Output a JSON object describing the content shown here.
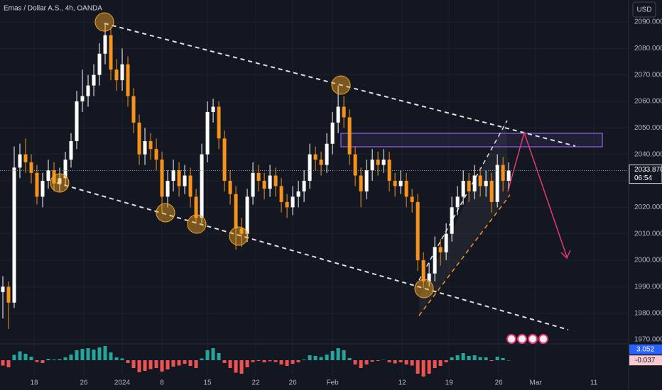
{
  "chart_data": {
    "type": "candlestick",
    "title": "Emas / Dollar A.S., 4h, OANDA",
    "currency": "USD",
    "up_color": "#ffffff",
    "down_color": "#f7931a",
    "ohlc": {
      "open": [
        1988,
        1990,
        1984,
        2035,
        2040,
        2037,
        2033,
        2024,
        2030,
        2034,
        2029,
        2031,
        2038,
        2045,
        2060,
        2062,
        2066,
        2070,
        2078,
        2085,
        2072,
        2068,
        2074,
        2062,
        2052,
        2040,
        2045,
        2042,
        2038,
        2024,
        2030,
        2034,
        2028,
        2032,
        2024,
        2016,
        2040,
        2056,
        2058,
        2046,
        2030,
        2025,
        2012,
        2010,
        2024,
        2033,
        2030,
        2027,
        2032,
        2028,
        2022,
        2020,
        2024,
        2026,
        2030,
        2040,
        2038,
        2036,
        2044,
        2052,
        2058,
        2054,
        2040,
        2032,
        2026,
        2034,
        2038,
        2036,
        2038,
        2030,
        2028,
        2030,
        2024,
        2022,
        2000,
        1992,
        1995,
        2005,
        2003,
        2010,
        2020,
        2024,
        2030,
        2026,
        2032,
        2028,
        2030,
        2022,
        2036,
        2030
      ],
      "high": [
        1994,
        1992,
        2043,
        2044,
        2046,
        2040,
        2036,
        2033,
        2038,
        2037,
        2035,
        2041,
        2048,
        2064,
        2072,
        2070,
        2074,
        2082,
        2089.5,
        2088,
        2076,
        2080,
        2077,
        2065,
        2055,
        2050,
        2048,
        2046,
        2041,
        2034,
        2038,
        2037,
        2036,
        2035,
        2027,
        2044,
        2060,
        2061,
        2060,
        2049,
        2034,
        2028,
        2016,
        2027,
        2037,
        2036,
        2033,
        2036,
        2035,
        2031,
        2025,
        2028,
        2030,
        2034,
        2044,
        2043,
        2041,
        2048,
        2056,
        2066,
        2062,
        2057,
        2043,
        2035,
        2038,
        2042,
        2041,
        2042,
        2041,
        2033,
        2034,
        2033,
        2027,
        2025,
        2003,
        1999,
        2009,
        2008,
        2014,
        2024,
        2028,
        2034,
        2033,
        2036,
        2035,
        2034,
        2033,
        2040,
        2039,
        2037
      ],
      "low": [
        1978,
        1974,
        1982,
        2031,
        2033,
        2029,
        2021,
        2020,
        2027,
        2026,
        2026,
        2028,
        2035,
        2042,
        2056,
        2058,
        2062,
        2066,
        2074,
        2068,
        2064,
        2064,
        2058,
        2048,
        2036,
        2036,
        2038,
        2034,
        2018,
        2020,
        2026,
        2024,
        2025,
        2020,
        2013.7,
        2014,
        2037,
        2052,
        2042,
        2026,
        2021,
        2004,
        2005,
        2007,
        2021,
        2026,
        2023,
        2024,
        2024,
        2018,
        2016,
        2017,
        2020,
        2022,
        2027,
        2034,
        2032,
        2033,
        2040,
        2048,
        2050,
        2036,
        2028,
        2020,
        2023,
        2030,
        2032,
        2033,
        2026,
        2024,
        2025,
        2020,
        2018,
        1996,
        1989.5,
        1990,
        1992,
        1998,
        2000,
        2007,
        2017,
        2021,
        2022,
        2023,
        2024,
        2024,
        2018,
        2020,
        2026,
        2027
      ],
      "close": [
        1990,
        1984,
        2035,
        2040,
        2037,
        2033,
        2024,
        2030,
        2034,
        2029,
        2031,
        2038,
        2045,
        2060,
        2062,
        2066,
        2070,
        2078,
        2085,
        2072,
        2068,
        2074,
        2062,
        2052,
        2040,
        2045,
        2042,
        2038,
        2024,
        2030,
        2034,
        2028,
        2032,
        2024,
        2016,
        2040,
        2056,
        2058,
        2046,
        2030,
        2025,
        2012,
        2010,
        2024,
        2033,
        2030,
        2027,
        2032,
        2028,
        2022,
        2020,
        2024,
        2026,
        2030,
        2040,
        2038,
        2036,
        2044,
        2052,
        2058,
        2054,
        2040,
        2032,
        2026,
        2034,
        2038,
        2036,
        2038,
        2030,
        2028,
        2030,
        2024,
        2022,
        2000,
        1992,
        1995,
        2005,
        2003,
        2010,
        2020,
        2024,
        2030,
        2026,
        2032,
        2028,
        2030,
        2022,
        2036,
        2030,
        2033.87
      ]
    },
    "last_price": {
      "value": 2033.87,
      "label": "2033.870"
    },
    "countdown": "06:54",
    "xlim": [
      -0.5,
      110.1
    ],
    "xticks": [
      {
        "value": 5.5,
        "label": "18"
      },
      {
        "value": 14.25,
        "label": "26"
      },
      {
        "value": 21,
        "label": "2024"
      },
      {
        "value": 28,
        "label": "8"
      },
      {
        "value": 36,
        "label": "15"
      },
      {
        "value": 44.5,
        "label": "22"
      },
      {
        "value": 51,
        "label": "26"
      },
      {
        "value": 58,
        "label": "Feb"
      },
      {
        "value": 70.25,
        "label": "12"
      },
      {
        "value": 78.5,
        "label": "19"
      },
      {
        "value": 87.25,
        "label": "26"
      },
      {
        "value": 93.75,
        "label": "Mar"
      },
      {
        "value": 104,
        "label": "11"
      }
    ],
    "ylim": [
      1968.4,
      2098.3
    ],
    "yticks": [
      {
        "value": 1970,
        "label": "1970.000"
      },
      {
        "value": 1980,
        "label": "1980.000"
      },
      {
        "value": 1990,
        "label": "1990.000"
      },
      {
        "value": 2000,
        "label": "2000.000"
      },
      {
        "value": 2010,
        "label": "2010.000"
      },
      {
        "value": 2020,
        "label": "2020.000"
      },
      {
        "value": 2030,
        "label": "2030.000"
      },
      {
        "value": 2040,
        "label": "2040.000"
      },
      {
        "value": 2050,
        "label": "2050.000"
      },
      {
        "value": 2060,
        "label": "2060.000"
      },
      {
        "value": 2070,
        "label": "2070.000"
      },
      {
        "value": 2080,
        "label": "2080.000"
      },
      {
        "value": 2090,
        "label": "2090.000"
      }
    ],
    "indicator": {
      "type": "histogram",
      "up_color": "#26a69a",
      "down_color": "#ef5350",
      "ylim": [
        -4.6,
        4.6
      ],
      "macd_last": 3.052,
      "values": [
        -1.5,
        -2,
        1.5,
        2.5,
        1.8,
        1.0,
        -0.5,
        -0.8,
        0.4,
        0.2,
        0.3,
        0.8,
        1.6,
        2.8,
        3.2,
        3.4,
        3.0,
        3.6,
        4.0,
        2.2,
        0.8,
        0.5,
        -0.8,
        -2.2,
        -3.4,
        -3.0,
        -2.5,
        -2.2,
        -3.2,
        -2.6,
        -1.8,
        -1.5,
        -1.0,
        -1.6,
        -2.2,
        0.5,
        2.8,
        3.4,
        2.0,
        -0.8,
        -2.2,
        -3.5,
        -3.8,
        -2.0,
        -0.5,
        -0.2,
        -0.6,
        -0.3,
        -0.5,
        -1.2,
        -1.6,
        -1.0,
        -0.6,
        0.2,
        1.4,
        1.2,
        0.9,
        1.6,
        2.6,
        3.4,
        2.8,
        0.6,
        -1.2,
        -2.2,
        -1.2,
        -0.4,
        -0.2,
        0.1,
        -0.6,
        -0.9,
        -0.6,
        -1.2,
        -1.5,
        -3.8,
        -4.6,
        -3.8,
        -2.2,
        -1.6,
        -0.6,
        0.8,
        1.4,
        2.0,
        1.2,
        1.4,
        0.9,
        0.8,
        -0.2,
        1.0,
        0.6,
        -0.037
      ]
    }
  }
}
